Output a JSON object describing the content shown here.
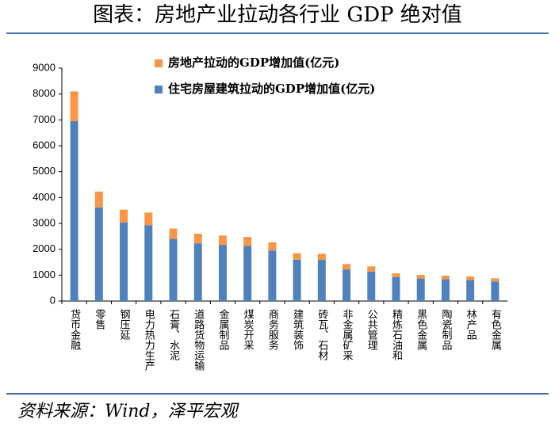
{
  "chart_data": {
    "type": "stacked_bar",
    "title": "图表：房地产业拉动各行业 GDP 绝对值",
    "source": "资料来源：Wind，泽平宏观",
    "categories": [
      "货币金融",
      "零售",
      "钢压延",
      "电力热力生产",
      "石膏、水泥",
      "道路货物运输",
      "金属制品",
      "煤炭开采",
      "商务服务",
      "建筑装饰",
      "砖瓦、石材",
      "非金属矿采",
      "公共管理",
      "精炼石油和",
      "黑色金属",
      "陶瓷制品",
      "林产品",
      "有色金属"
    ],
    "series": [
      {
        "name": "住宅房屋建筑拉动的GDP增加值(亿元)",
        "color": "#4f81bd",
        "values": [
          6950,
          3620,
          3040,
          2930,
          2400,
          2230,
          2170,
          2130,
          1950,
          1600,
          1590,
          1220,
          1140,
          920,
          870,
          840,
          810,
          760
        ]
      },
      {
        "name": "房地产拉动的GDP增加值(亿元)",
        "color": "#f79646",
        "values": [
          1150,
          610,
          490,
          490,
          400,
          370,
          360,
          350,
          320,
          250,
          240,
          210,
          200,
          150,
          140,
          140,
          140,
          120
        ]
      }
    ],
    "legend_order": [
      1,
      0
    ],
    "ylim": [
      0,
      9000
    ],
    "yticks": [
      0,
      1000,
      2000,
      3000,
      4000,
      5000,
      6000,
      7000,
      8000,
      9000
    ]
  }
}
